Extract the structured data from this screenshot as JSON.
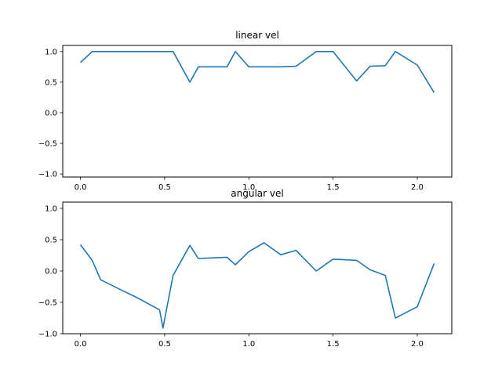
{
  "colors": {
    "series": "#1f77b4",
    "background": "#ffffff",
    "axes": "#000000"
  },
  "chart_data": [
    {
      "type": "line",
      "title": "linear vel",
      "xlabel": "",
      "ylabel": "",
      "xlim": [
        -0.105,
        2.205
      ],
      "ylim": [
        -1.05,
        1.1
      ],
      "xticks": [
        0.0,
        0.5,
        1.0,
        1.5,
        2.0
      ],
      "xtick_labels": [
        "0.0",
        "0.5",
        "1.0",
        "1.5",
        "2.0"
      ],
      "yticks": [
        1.0,
        0.5,
        0.0,
        -0.5,
        -1.0
      ],
      "ytick_labels": [
        "1.0",
        "0.5",
        "0.0",
        "−0.5",
        "−1.0"
      ],
      "grid": false,
      "x": [
        0.0,
        0.07,
        0.12,
        0.21,
        0.34,
        0.47,
        0.55,
        0.65,
        0.7,
        0.87,
        0.92,
        1.0,
        1.09,
        1.19,
        1.28,
        1.4,
        1.5,
        1.64,
        1.72,
        1.81,
        1.87,
        2.0,
        2.1
      ],
      "y": [
        0.82,
        1.0,
        1.0,
        1.0,
        1.0,
        1.0,
        1.0,
        0.5,
        0.75,
        0.75,
        1.0,
        0.75,
        0.75,
        0.75,
        0.76,
        1.0,
        1.0,
        0.52,
        0.76,
        0.77,
        1.0,
        0.78,
        0.33
      ]
    },
    {
      "type": "line",
      "title": "angular vel",
      "xlabel": "",
      "ylabel": "",
      "xlim": [
        -0.105,
        2.205
      ],
      "ylim": [
        -1.0,
        1.1
      ],
      "xticks": [
        0.0,
        0.5,
        1.0,
        1.5,
        2.0
      ],
      "xtick_labels": [
        "0.0",
        "0.5",
        "1.0",
        "1.5",
        "2.0"
      ],
      "yticks": [
        1.0,
        0.5,
        0.0,
        -0.5,
        -1.0
      ],
      "ytick_labels": [
        "1.0",
        "0.5",
        "0.0",
        "−0.5",
        "−1.0"
      ],
      "grid": false,
      "x": [
        0.0,
        0.07,
        0.12,
        0.21,
        0.34,
        0.47,
        0.49,
        0.55,
        0.65,
        0.7,
        0.87,
        0.92,
        1.0,
        1.09,
        1.19,
        1.28,
        1.4,
        1.5,
        1.64,
        1.72,
        1.81,
        1.87,
        2.0,
        2.1
      ],
      "y": [
        0.42,
        0.17,
        -0.14,
        -0.26,
        -0.43,
        -0.62,
        -0.91,
        -0.07,
        0.41,
        0.2,
        0.22,
        0.1,
        0.31,
        0.45,
        0.26,
        0.33,
        0.0,
        0.19,
        0.17,
        0.02,
        -0.07,
        -0.75,
        -0.57,
        0.12
      ]
    }
  ]
}
